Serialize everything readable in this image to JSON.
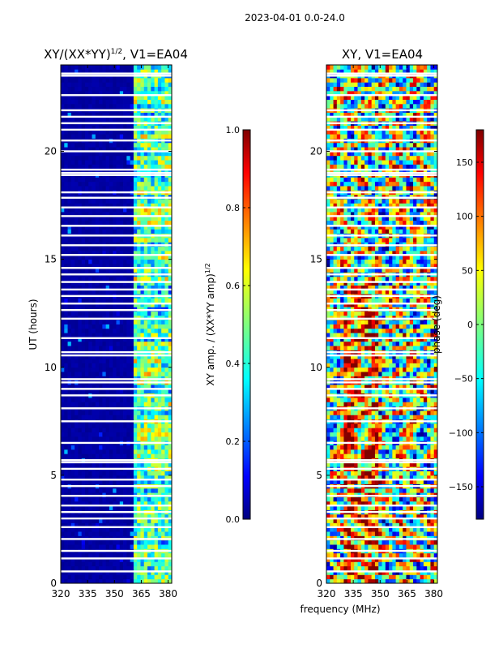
{
  "suptitle": "2023-04-01 0.0-24.0",
  "xlabel_shared": "frequency (MHz)",
  "colors": {
    "jet": [
      "#00007f",
      "#0000ff",
      "#007fff",
      "#00ffff",
      "#7fff7f",
      "#ffff00",
      "#ff7f00",
      "#ff0000",
      "#7f0000"
    ],
    "gap": "#ffffff",
    "axis": "#000000"
  },
  "chart_data": [
    {
      "type": "heatmap",
      "title": "XY/(XX*YY)^1/2, V1=EA04",
      "title_main": "XY/(XX*YY)",
      "title_sup": "1/2",
      "title_tail": ", V1=EA04",
      "xlabel": "",
      "ylabel": "UT (hours)",
      "xlim": [
        320,
        382
      ],
      "ylim": [
        0,
        24
      ],
      "xticks": [
        320,
        335,
        350,
        365,
        380
      ],
      "yticks": [
        0,
        5,
        10,
        15,
        20
      ],
      "colorbar": {
        "label": "XY amp. / (XX*YY amp)^1/2",
        "label_main": "XY amp. / (XX*YY amp)",
        "label_sup": "1/2",
        "range": [
          0.0,
          1.0
        ],
        "ticks": [
          "0.0",
          "0.2",
          "0.4",
          "0.6",
          "0.8",
          "1.0"
        ],
        "tick_values": [
          0.0,
          0.2,
          0.4,
          0.6,
          0.8,
          1.0
        ]
      },
      "description_values": {
        "low_band_MHz": [
          320,
          360
        ],
        "low_band_level": 0.02,
        "high_band_MHz": [
          360,
          382
        ],
        "high_band_level": 0.45
      }
    },
    {
      "type": "heatmap",
      "title": "XY, V1=EA04",
      "xlabel": "frequency (MHz)",
      "ylabel": "",
      "xlim": [
        320,
        382
      ],
      "ylim": [
        0,
        24
      ],
      "xticks": [
        320,
        335,
        350,
        365,
        380
      ],
      "yticks": [
        0,
        5,
        10,
        15,
        20
      ],
      "colorbar": {
        "label": "phase (deg)",
        "range": [
          -180,
          180
        ],
        "ticks": [
          "−150",
          "−100",
          "−50",
          "0",
          "50",
          "100",
          "150"
        ],
        "tick_values": [
          -150,
          -100,
          -50,
          0,
          50,
          100,
          150
        ]
      }
    }
  ],
  "gap_hours": [
    0.55,
    1.15,
    1.5,
    2.05,
    2.6,
    3.0,
    3.3,
    3.6,
    4.05,
    4.5,
    4.8,
    5.3,
    5.6,
    5.7,
    6.5,
    7.5,
    8.1,
    8.7,
    9.0,
    9.3,
    9.45,
    10.55,
    10.7,
    11.35,
    12.25,
    12.65,
    12.95,
    13.3,
    13.6,
    13.95,
    14.3,
    14.6,
    15.2,
    15.65,
    16.1,
    16.55,
    17.0,
    17.4,
    17.85,
    18.1,
    18.9,
    19.0,
    19.15,
    20.0,
    20.5,
    21.0,
    21.3,
    21.6,
    21.9,
    22.6,
    23.5,
    23.6
  ]
}
